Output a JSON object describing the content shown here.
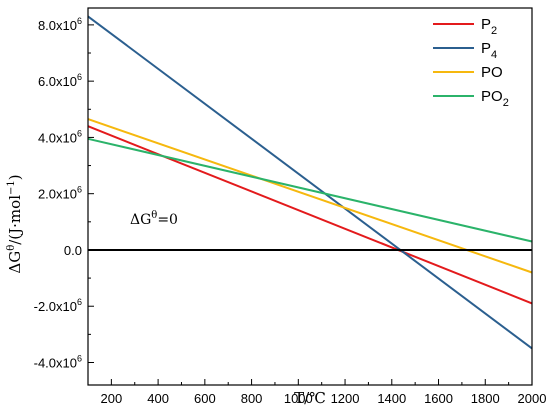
{
  "chart_data": {
    "type": "line",
    "xlabel": "T/℃",
    "ylabel": "ΔG",
    "ylabel_sup": "θ",
    "ylabel_units": "/(J·mol",
    "ylabel_units_sup": "−1",
    "ylabel_close": ")",
    "xlim": [
      100,
      2000
    ],
    "ylim": [
      -4.8,
      8.6
    ],
    "y_scale_text": "×10^6",
    "x_ticks": [
      200,
      400,
      600,
      800,
      1000,
      1200,
      1400,
      1600,
      1800,
      2000
    ],
    "y_ticks": [
      {
        "value": -4.0,
        "mantissa": "-4.0x10",
        "exp": "6"
      },
      {
        "value": -2.0,
        "mantissa": "-2.0x10",
        "exp": "6"
      },
      {
        "value": 0.0,
        "mantissa": "0.0",
        "exp": ""
      },
      {
        "value": 2.0,
        "mantissa": "2.0x10",
        "exp": "6"
      },
      {
        "value": 4.0,
        "mantissa": "4.0x10",
        "exp": "6"
      },
      {
        "value": 6.0,
        "mantissa": "6.0x10",
        "exp": "6"
      },
      {
        "value": 8.0,
        "mantissa": "8.0x10",
        "exp": "6"
      }
    ],
    "reference_line": {
      "y": 0,
      "label": "ΔG",
      "label_sup": "θ",
      "label_rest": "=0"
    },
    "grid": false,
    "legend_position": "top-right",
    "series": [
      {
        "name": "P",
        "sub": "2",
        "color": "#e31a1c",
        "x": [
          100,
          2000
        ],
        "y": [
          4.4,
          -1.9
        ]
      },
      {
        "name": "P",
        "sub": "4",
        "color": "#2b5f8f",
        "x": [
          100,
          2000
        ],
        "y": [
          8.3,
          -3.5
        ]
      },
      {
        "name": "PO",
        "sub": "",
        "color": "#f6b80e",
        "x": [
          100,
          2000
        ],
        "y": [
          4.65,
          -0.8
        ]
      },
      {
        "name": "PO",
        "sub": "2",
        "color": "#2bb36a",
        "x": [
          100,
          2000
        ],
        "y": [
          3.95,
          0.3
        ]
      }
    ]
  }
}
